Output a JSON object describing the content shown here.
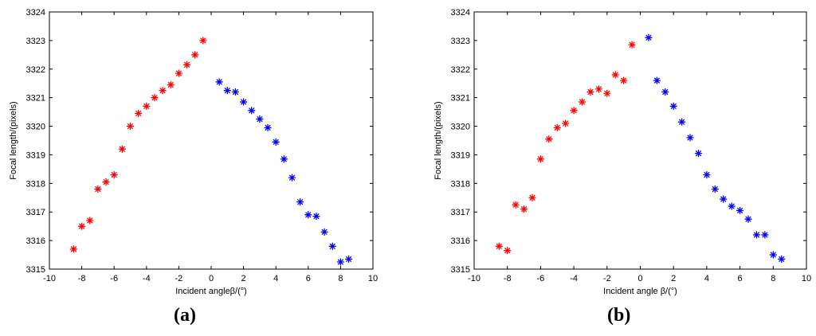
{
  "chart_data": [
    {
      "type": "scatter",
      "caption": "(a)",
      "caption_letter": "a",
      "xlabel": "Incident angleβ/(°)",
      "ylabel": "Focal length/(pixels)",
      "xlim": [
        -10,
        10
      ],
      "ylim": [
        3315,
        3324
      ],
      "xticks": [
        -10,
        -8,
        -6,
        -4,
        -2,
        0,
        2,
        4,
        6,
        8,
        10
      ],
      "yticks": [
        3315,
        3316,
        3317,
        3318,
        3319,
        3320,
        3321,
        3322,
        3323,
        3324
      ],
      "grid": false,
      "series": [
        {
          "color": "#ff0000",
          "marker": "*",
          "points": [
            [
              -8.5,
              3315.7
            ],
            [
              -8,
              3316.5
            ],
            [
              -7.5,
              3316.7
            ],
            [
              -7,
              3317.8
            ],
            [
              -6.5,
              3318.05
            ],
            [
              -6,
              3318.3
            ],
            [
              -5.5,
              3319.2
            ],
            [
              -5,
              3320.0
            ],
            [
              -4.5,
              3320.45
            ],
            [
              -4,
              3320.7
            ],
            [
              -3.5,
              3321.0
            ],
            [
              -3,
              3321.25
            ],
            [
              -2.5,
              3321.45
            ],
            [
              -2,
              3321.85
            ],
            [
              -1.5,
              3322.15
            ],
            [
              -1,
              3322.5
            ],
            [
              -0.5,
              3323.0
            ]
          ]
        },
        {
          "color": "#0000ff",
          "marker": "*",
          "points": [
            [
              0.5,
              3321.55
            ],
            [
              1,
              3321.25
            ],
            [
              1.5,
              3321.2
            ],
            [
              2,
              3320.85
            ],
            [
              2.5,
              3320.55
            ],
            [
              3,
              3320.25
            ],
            [
              3.5,
              3319.95
            ],
            [
              4,
              3319.45
            ],
            [
              4.5,
              3318.85
            ],
            [
              5,
              3318.2
            ],
            [
              5.5,
              3317.35
            ],
            [
              6,
              3316.9
            ],
            [
              6.5,
              3316.85
            ],
            [
              7,
              3316.3
            ],
            [
              7.5,
              3315.8
            ],
            [
              8,
              3315.25
            ],
            [
              8.5,
              3315.35
            ]
          ]
        }
      ]
    },
    {
      "type": "scatter",
      "caption": "(b)",
      "caption_letter": "b",
      "xlabel": "Incident angle β/(°)",
      "ylabel": "Focal length/(pixels)",
      "xlim": [
        -10,
        10
      ],
      "ylim": [
        3315,
        3324
      ],
      "xticks": [
        -10,
        -8,
        -6,
        -4,
        -2,
        0,
        2,
        4,
        6,
        8,
        10
      ],
      "yticks": [
        3315,
        3316,
        3317,
        3318,
        3319,
        3320,
        3321,
        3322,
        3323,
        3324
      ],
      "grid": false,
      "series": [
        {
          "color": "#ff0000",
          "marker": "*",
          "points": [
            [
              -8.5,
              3315.8
            ],
            [
              -8,
              3315.65
            ],
            [
              -7.5,
              3317.25
            ],
            [
              -7,
              3317.1
            ],
            [
              -6.5,
              3317.5
            ],
            [
              -6,
              3318.85
            ],
            [
              -5.5,
              3319.55
            ],
            [
              -5,
              3319.95
            ],
            [
              -4.5,
              3320.1
            ],
            [
              -4,
              3320.55
            ],
            [
              -3.5,
              3320.85
            ],
            [
              -3,
              3321.2
            ],
            [
              -2.5,
              3321.3
            ],
            [
              -2,
              3321.15
            ],
            [
              -1.5,
              3321.8
            ],
            [
              -1,
              3321.6
            ],
            [
              -0.5,
              3322.85
            ]
          ]
        },
        {
          "color": "#0000ff",
          "marker": "*",
          "points": [
            [
              0.5,
              3323.1
            ],
            [
              1,
              3321.6
            ],
            [
              1.5,
              3321.2
            ],
            [
              2,
              3320.7
            ],
            [
              2.5,
              3320.15
            ],
            [
              3,
              3319.6
            ],
            [
              3.5,
              3319.05
            ],
            [
              4,
              3318.3
            ],
            [
              4.5,
              3317.8
            ],
            [
              5,
              3317.45
            ],
            [
              5.5,
              3317.2
            ],
            [
              6,
              3317.05
            ],
            [
              6.5,
              3316.75
            ],
            [
              7,
              3316.2
            ],
            [
              7.5,
              3316.2
            ],
            [
              8,
              3315.5
            ],
            [
              8.5,
              3315.35
            ]
          ]
        }
      ]
    }
  ]
}
